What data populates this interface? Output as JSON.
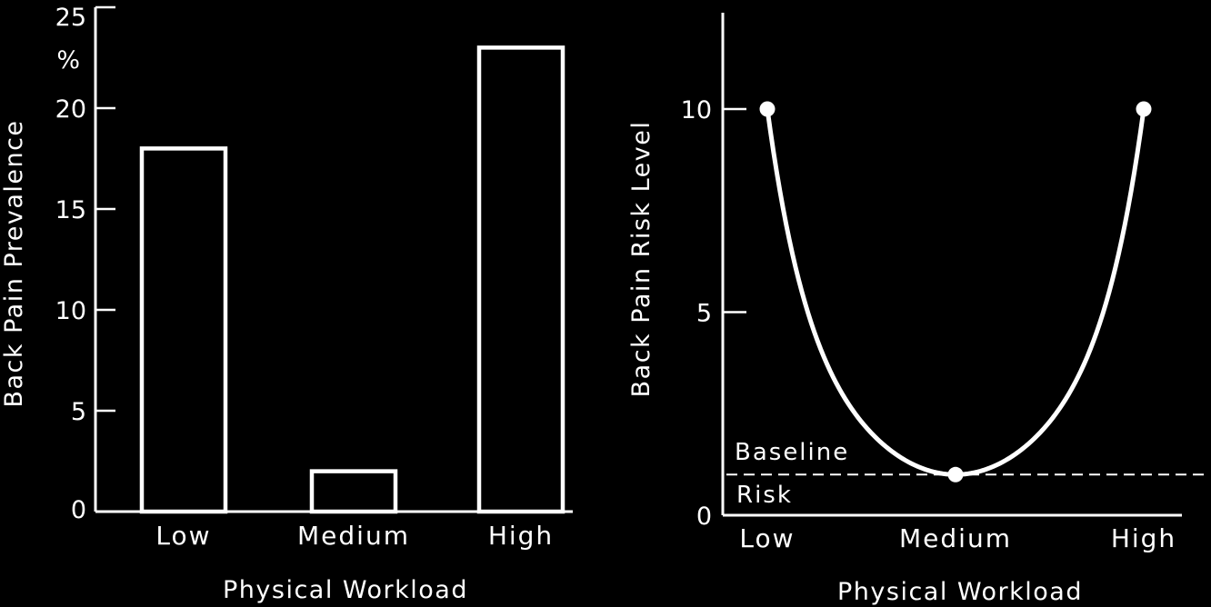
{
  "colors": {
    "background": "#000000",
    "foreground": "#ffffff"
  },
  "chart_data": [
    {
      "type": "bar",
      "categories": [
        "Low",
        "Medium",
        "High"
      ],
      "values": [
        18,
        2,
        23
      ],
      "xlabel": "Physical Workload",
      "ylabel": "Back Pain Prevalence",
      "yunit": "%",
      "ylim": [
        0,
        25
      ],
      "yticks": [
        0,
        5,
        10,
        15,
        20,
        25
      ],
      "grid": false
    },
    {
      "type": "line",
      "categories": [
        "Low",
        "Medium",
        "High"
      ],
      "x": [
        0,
        1,
        2
      ],
      "values": [
        10,
        1,
        10
      ],
      "xlabel": "Physical Workload",
      "ylabel": "Back Pain Risk Level",
      "ylim": [
        0,
        12
      ],
      "yticks": [
        0,
        5,
        10
      ],
      "baseline": {
        "value": 1,
        "label_above": "Baseline",
        "label_below": "Risk"
      },
      "grid": false
    }
  ]
}
